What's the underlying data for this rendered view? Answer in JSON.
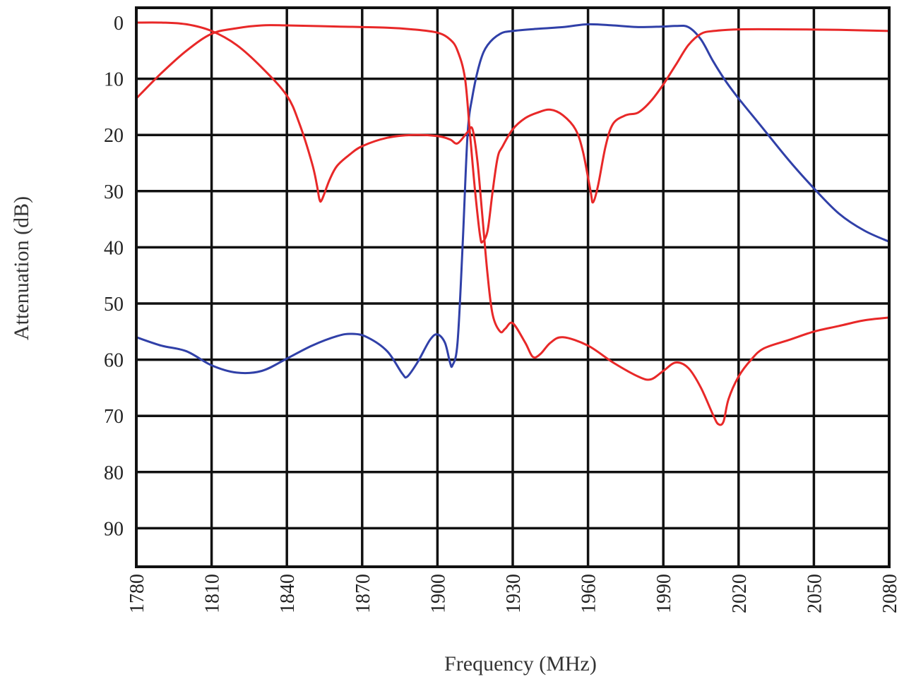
{
  "chart_data": {
    "type": "line",
    "title": "",
    "xlabel": "Frequency (MHz)",
    "ylabel": "Attenuation (dB)",
    "xlim": [
      1780,
      2080
    ],
    "ylim": [
      0,
      98
    ],
    "y_inverted": true,
    "grid": true,
    "legend": "none",
    "x_ticks": [
      "1780",
      "1810",
      "1840",
      "1870",
      "1900",
      "1930",
      "1960",
      "1990",
      "2020",
      "2050",
      "2080"
    ],
    "y_ticks": [
      "0",
      "10",
      "20",
      "30",
      "40",
      "50",
      "60",
      "70",
      "80",
      "90"
    ],
    "series": [
      {
        "color": "#3040a8",
        "points": [
          [
            1780,
            56
          ],
          [
            1790,
            57.5
          ],
          [
            1800,
            58.5
          ],
          [
            1810,
            61
          ],
          [
            1820,
            62.3
          ],
          [
            1830,
            62
          ],
          [
            1840,
            59.8
          ],
          [
            1850,
            57.5
          ],
          [
            1860,
            55.8
          ],
          [
            1866,
            55.4
          ],
          [
            1872,
            56
          ],
          [
            1880,
            58.5
          ],
          [
            1886,
            62.5
          ],
          [
            1888,
            63
          ],
          [
            1892,
            60.5
          ],
          [
            1897,
            56.5
          ],
          [
            1900,
            55.5
          ],
          [
            1903,
            57
          ],
          [
            1905,
            60.5
          ],
          [
            1906,
            61
          ],
          [
            1908,
            57
          ],
          [
            1910,
            40
          ],
          [
            1912,
            20
          ],
          [
            1914,
            13
          ],
          [
            1917,
            7
          ],
          [
            1920,
            4
          ],
          [
            1925,
            2
          ],
          [
            1930,
            1.5
          ],
          [
            1940,
            1.1
          ],
          [
            1950,
            0.8
          ],
          [
            1960,
            0.3
          ],
          [
            1970,
            0.5
          ],
          [
            1980,
            0.8
          ],
          [
            1990,
            0.7
          ],
          [
            1995,
            0.6
          ],
          [
            2000,
            0.8
          ],
          [
            2005,
            3
          ],
          [
            2010,
            7
          ],
          [
            2015,
            10.5
          ],
          [
            2020,
            13.5
          ],
          [
            2030,
            19
          ],
          [
            2040,
            24.5
          ],
          [
            2050,
            29.5
          ],
          [
            2060,
            34
          ],
          [
            2070,
            37
          ],
          [
            2080,
            39
          ]
        ]
      },
      {
        "color": "#e82828",
        "points": [
          [
            1780,
            13.5
          ],
          [
            1790,
            9
          ],
          [
            1800,
            5
          ],
          [
            1810,
            2
          ],
          [
            1820,
            1
          ],
          [
            1830,
            0.5
          ],
          [
            1840,
            0.5
          ],
          [
            1860,
            0.7
          ],
          [
            1880,
            0.9
          ],
          [
            1890,
            1.2
          ],
          [
            1900,
            1.8
          ],
          [
            1905,
            3
          ],
          [
            1908,
            5
          ],
          [
            1911,
            10
          ],
          [
            1913,
            20
          ],
          [
            1915,
            30
          ],
          [
            1917,
            38
          ],
          [
            1918,
            39
          ],
          [
            1920,
            37
          ],
          [
            1922,
            30
          ],
          [
            1924,
            24
          ],
          [
            1926,
            22
          ],
          [
            1930,
            19
          ],
          [
            1935,
            17
          ],
          [
            1940,
            16
          ],
          [
            1945,
            15.5
          ],
          [
            1950,
            16.5
          ],
          [
            1955,
            19
          ],
          [
            1958,
            23
          ],
          [
            1961,
            30
          ],
          [
            1962,
            32
          ],
          [
            1964,
            29
          ],
          [
            1967,
            22
          ],
          [
            1970,
            18
          ],
          [
            1975,
            16.5
          ],
          [
            1980,
            16
          ],
          [
            1985,
            14
          ],
          [
            1990,
            11
          ],
          [
            1995,
            7.5
          ],
          [
            2000,
            4
          ],
          [
            2005,
            2
          ],
          [
            2010,
            1.5
          ],
          [
            2020,
            1.2
          ],
          [
            2040,
            1.2
          ],
          [
            2060,
            1.3
          ],
          [
            2080,
            1.5
          ]
        ]
      },
      {
        "color": "#e82828",
        "points": [
          [
            1780,
            0
          ],
          [
            1790,
            0
          ],
          [
            1800,
            0.3
          ],
          [
            1810,
            1.5
          ],
          [
            1820,
            4
          ],
          [
            1830,
            8
          ],
          [
            1840,
            13
          ],
          [
            1845,
            18
          ],
          [
            1850,
            25
          ],
          [
            1852,
            29
          ],
          [
            1853,
            31.5
          ],
          [
            1854,
            31.5
          ],
          [
            1857,
            28
          ],
          [
            1860,
            25.5
          ],
          [
            1865,
            23.5
          ],
          [
            1870,
            22
          ],
          [
            1880,
            20.5
          ],
          [
            1890,
            20
          ],
          [
            1900,
            20.2
          ],
          [
            1905,
            20.8
          ],
          [
            1908,
            21.5
          ],
          [
            1912,
            19.5
          ],
          [
            1914,
            19
          ],
          [
            1916,
            25
          ],
          [
            1918,
            35
          ],
          [
            1920,
            45
          ],
          [
            1922,
            52
          ],
          [
            1925,
            55
          ],
          [
            1927,
            54.5
          ],
          [
            1930,
            53.5
          ],
          [
            1935,
            57
          ],
          [
            1938,
            59.5
          ],
          [
            1941,
            59
          ],
          [
            1945,
            57
          ],
          [
            1950,
            56
          ],
          [
            1960,
            57.5
          ],
          [
            1970,
            60.5
          ],
          [
            1980,
            63
          ],
          [
            1985,
            63.5
          ],
          [
            1990,
            62
          ],
          [
            1995,
            60.5
          ],
          [
            2000,
            61.5
          ],
          [
            2005,
            65
          ],
          [
            2010,
            70
          ],
          [
            2012,
            71.5
          ],
          [
            2014,
            71
          ],
          [
            2016,
            67
          ],
          [
            2020,
            63
          ],
          [
            2025,
            60
          ],
          [
            2030,
            58
          ],
          [
            2040,
            56.5
          ],
          [
            2050,
            55
          ],
          [
            2060,
            54
          ],
          [
            2070,
            53
          ],
          [
            2080,
            52.5
          ]
        ]
      }
    ]
  }
}
